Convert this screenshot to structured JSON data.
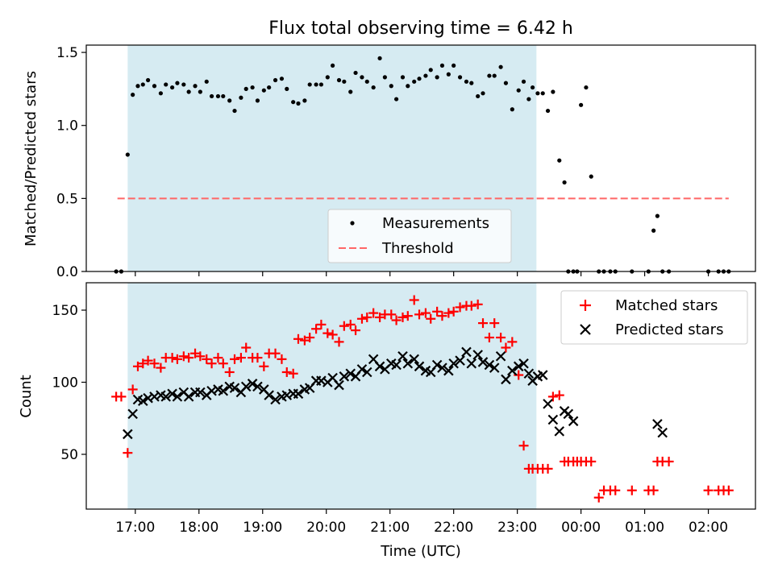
{
  "chart_data": {
    "type": "scatter",
    "title": "Flux total observing time = 6.42 h",
    "xlabel": "Time (UTC)",
    "x_unit": "hours since 17:00 UTC",
    "xlim": [
      -0.77,
      9.74
    ],
    "xticks": [
      {
        "value": 0,
        "label": "17:00"
      },
      {
        "value": 1,
        "label": "18:00"
      },
      {
        "value": 2,
        "label": "19:00"
      },
      {
        "value": 3,
        "label": "20:00"
      },
      {
        "value": 4,
        "label": "21:00"
      },
      {
        "value": 5,
        "label": "22:00"
      },
      {
        "value": 6,
        "label": "23:00"
      },
      {
        "value": 7,
        "label": "00:00"
      },
      {
        "value": 8,
        "label": "01:00"
      },
      {
        "value": 9,
        "label": "02:00"
      }
    ],
    "shaded_span": {
      "start": -0.12,
      "end": 6.3,
      "color": "#add8e6"
    },
    "top": {
      "ylabel": "Matched/Predicted stars",
      "ylim": [
        0,
        1.55
      ],
      "yticks": [
        {
          "value": 0,
          "label": "0.0"
        },
        {
          "value": 0.5,
          "label": "0.5"
        },
        {
          "value": 1,
          "label": "1.0"
        },
        {
          "value": 1.5,
          "label": "1.5"
        }
      ],
      "threshold": {
        "value": 0.5,
        "x_start": -0.28,
        "x_end": 9.32,
        "color": "#ff6666"
      },
      "legend": {
        "position": "lower-center",
        "measurements_label": "Measurements",
        "threshold_label": "Threshold"
      },
      "measurements": {
        "x": [
          -0.3,
          -0.22,
          -0.12,
          -0.04,
          0.04,
          0.12,
          0.2,
          0.3,
          0.4,
          0.48,
          0.58,
          0.66,
          0.76,
          0.84,
          0.94,
          1.02,
          1.12,
          1.2,
          1.3,
          1.38,
          1.48,
          1.56,
          1.66,
          1.74,
          1.84,
          1.92,
          2.02,
          2.1,
          2.2,
          2.3,
          2.38,
          2.48,
          2.56,
          2.66,
          2.74,
          2.84,
          2.92,
          3.02,
          3.1,
          3.2,
          3.28,
          3.38,
          3.46,
          3.56,
          3.64,
          3.74,
          3.84,
          3.92,
          4.02,
          4.1,
          4.2,
          4.28,
          4.38,
          4.46,
          4.56,
          4.64,
          4.74,
          4.82,
          4.92,
          5.0,
          5.1,
          5.2,
          5.28,
          5.38,
          5.46,
          5.56,
          5.64,
          5.74,
          5.82,
          5.92,
          6.02,
          6.1,
          6.18,
          6.24,
          6.32,
          6.4,
          6.48,
          6.56,
          6.66,
          6.74,
          6.8,
          6.88,
          6.94,
          7.0,
          7.08,
          7.16,
          7.28,
          7.36,
          7.46,
          7.54,
          7.8,
          8.06,
          8.14,
          8.2,
          8.28,
          8.38,
          9.0,
          9.16,
          9.24,
          9.32
        ],
        "y": [
          0,
          0,
          0.8,
          1.21,
          1.27,
          1.28,
          1.31,
          1.27,
          1.22,
          1.28,
          1.26,
          1.29,
          1.28,
          1.23,
          1.27,
          1.23,
          1.3,
          1.2,
          1.2,
          1.2,
          1.17,
          1.1,
          1.19,
          1.25,
          1.26,
          1.17,
          1.24,
          1.26,
          1.31,
          1.32,
          1.25,
          1.16,
          1.15,
          1.17,
          1.28,
          1.28,
          1.28,
          1.33,
          1.41,
          1.31,
          1.3,
          1.23,
          1.36,
          1.33,
          1.3,
          1.26,
          1.46,
          1.33,
          1.27,
          1.18,
          1.33,
          1.27,
          1.3,
          1.32,
          1.34,
          1.38,
          1.33,
          1.41,
          1.35,
          1.41,
          1.33,
          1.3,
          1.29,
          1.2,
          1.22,
          1.34,
          1.34,
          1.4,
          1.29,
          1.11,
          1.24,
          1.3,
          1.18,
          1.26,
          1.22,
          1.22,
          1.1,
          1.23,
          0.76,
          0.61,
          0,
          0,
          0,
          1.14,
          1.26,
          0.65,
          0,
          0,
          0,
          0,
          0,
          0,
          0.28,
          0.38,
          0,
          0,
          0,
          0,
          0,
          0
        ]
      }
    },
    "bottom": {
      "ylabel": "Count",
      "ylim": [
        12,
        169
      ],
      "yticks": [
        {
          "value": 50,
          "label": "50"
        },
        {
          "value": 100,
          "label": "100"
        },
        {
          "value": 150,
          "label": "150"
        }
      ],
      "legend": {
        "position": "upper-right",
        "matched_label": "Matched stars",
        "predicted_label": "Predicted stars"
      },
      "series": [
        {
          "name": "Matched stars",
          "marker": "plus",
          "color": "#ff0000",
          "x": [
            -0.3,
            -0.22,
            -0.12,
            -0.04,
            0.04,
            0.12,
            0.2,
            0.3,
            0.4,
            0.48,
            0.58,
            0.66,
            0.76,
            0.84,
            0.94,
            1.02,
            1.12,
            1.2,
            1.3,
            1.38,
            1.48,
            1.56,
            1.66,
            1.74,
            1.84,
            1.92,
            2.02,
            2.1,
            2.2,
            2.3,
            2.38,
            2.48,
            2.56,
            2.66,
            2.74,
            2.84,
            2.92,
            3.02,
            3.1,
            3.2,
            3.28,
            3.38,
            3.46,
            3.56,
            3.64,
            3.74,
            3.84,
            3.92,
            4.02,
            4.1,
            4.2,
            4.28,
            4.38,
            4.46,
            4.56,
            4.64,
            4.74,
            4.82,
            4.92,
            5.0,
            5.1,
            5.2,
            5.28,
            5.38,
            5.46,
            5.56,
            5.64,
            5.74,
            5.82,
            5.92,
            6.02,
            6.1,
            6.18,
            6.24,
            6.32,
            6.4,
            6.48,
            6.56,
            6.66,
            6.74,
            6.8,
            6.88,
            6.94,
            7.0,
            7.08,
            7.16,
            7.28,
            7.36,
            7.46,
            7.54,
            7.8,
            8.06,
            8.14,
            8.2,
            8.28,
            8.38,
            9.0,
            9.16,
            9.24,
            9.32
          ],
          "y": [
            90,
            90,
            51,
            95,
            111,
            113,
            115,
            113,
            110,
            117,
            117,
            116,
            118,
            117,
            120,
            118,
            116,
            113,
            117,
            113,
            107,
            116,
            117,
            124,
            117,
            117,
            111,
            120,
            120,
            116,
            107,
            106,
            130,
            129,
            131,
            137,
            140,
            134,
            133,
            128,
            139,
            140,
            136,
            144,
            145,
            148,
            145,
            147,
            147,
            143,
            145,
            146,
            157,
            147,
            148,
            144,
            149,
            146,
            148,
            149,
            152,
            153,
            153,
            154,
            141,
            131,
            141,
            131,
            124,
            128,
            105,
            56,
            40,
            40,
            40,
            40,
            40,
            90,
            91,
            45,
            45,
            45,
            45,
            45,
            45,
            45,
            20,
            25,
            25,
            25,
            25,
            25,
            25,
            45,
            45,
            45,
            25,
            25,
            25,
            25
          ],
          "_note": "arrays aligned by index; values are approximate readings"
        },
        {
          "name": "Predicted stars",
          "marker": "x",
          "color": "#000000",
          "x": [
            -0.12,
            -0.04,
            0.04,
            0.12,
            0.2,
            0.3,
            0.4,
            0.48,
            0.58,
            0.66,
            0.76,
            0.84,
            0.94,
            1.02,
            1.12,
            1.2,
            1.3,
            1.38,
            1.48,
            1.56,
            1.66,
            1.74,
            1.84,
            1.92,
            2.02,
            2.1,
            2.2,
            2.3,
            2.38,
            2.48,
            2.56,
            2.66,
            2.74,
            2.84,
            2.92,
            3.02,
            3.1,
            3.2,
            3.28,
            3.38,
            3.46,
            3.56,
            3.64,
            3.74,
            3.84,
            3.92,
            4.02,
            4.1,
            4.2,
            4.28,
            4.38,
            4.46,
            4.56,
            4.64,
            4.74,
            4.82,
            4.92,
            5.0,
            5.1,
            5.2,
            5.28,
            5.38,
            5.46,
            5.56,
            5.64,
            5.74,
            5.82,
            5.92,
            6.02,
            6.1,
            6.18,
            6.24,
            6.32,
            6.4,
            6.48,
            6.56,
            6.66,
            6.74,
            6.8,
            6.88,
            8.2,
            8.28
          ],
          "y": [
            64,
            78,
            88,
            87,
            89,
            90,
            91,
            90,
            92,
            90,
            93,
            90,
            93,
            93,
            91,
            94,
            95,
            94,
            97,
            96,
            93,
            97,
            99,
            97,
            95,
            91,
            88,
            90,
            91,
            92,
            92,
            95,
            96,
            101,
            101,
            100,
            103,
            98,
            104,
            106,
            104,
            109,
            107,
            116,
            111,
            109,
            113,
            112,
            118,
            113,
            116,
            111,
            108,
            107,
            112,
            110,
            108,
            113,
            115,
            121,
            113,
            119,
            114,
            112,
            110,
            118,
            102,
            108,
            111,
            113,
            106,
            101,
            104,
            105,
            85,
            74,
            66,
            80,
            78,
            73,
            71,
            65
          ],
          "_note": "arrays aligned by index; values are approximate readings"
        }
      ]
    }
  }
}
